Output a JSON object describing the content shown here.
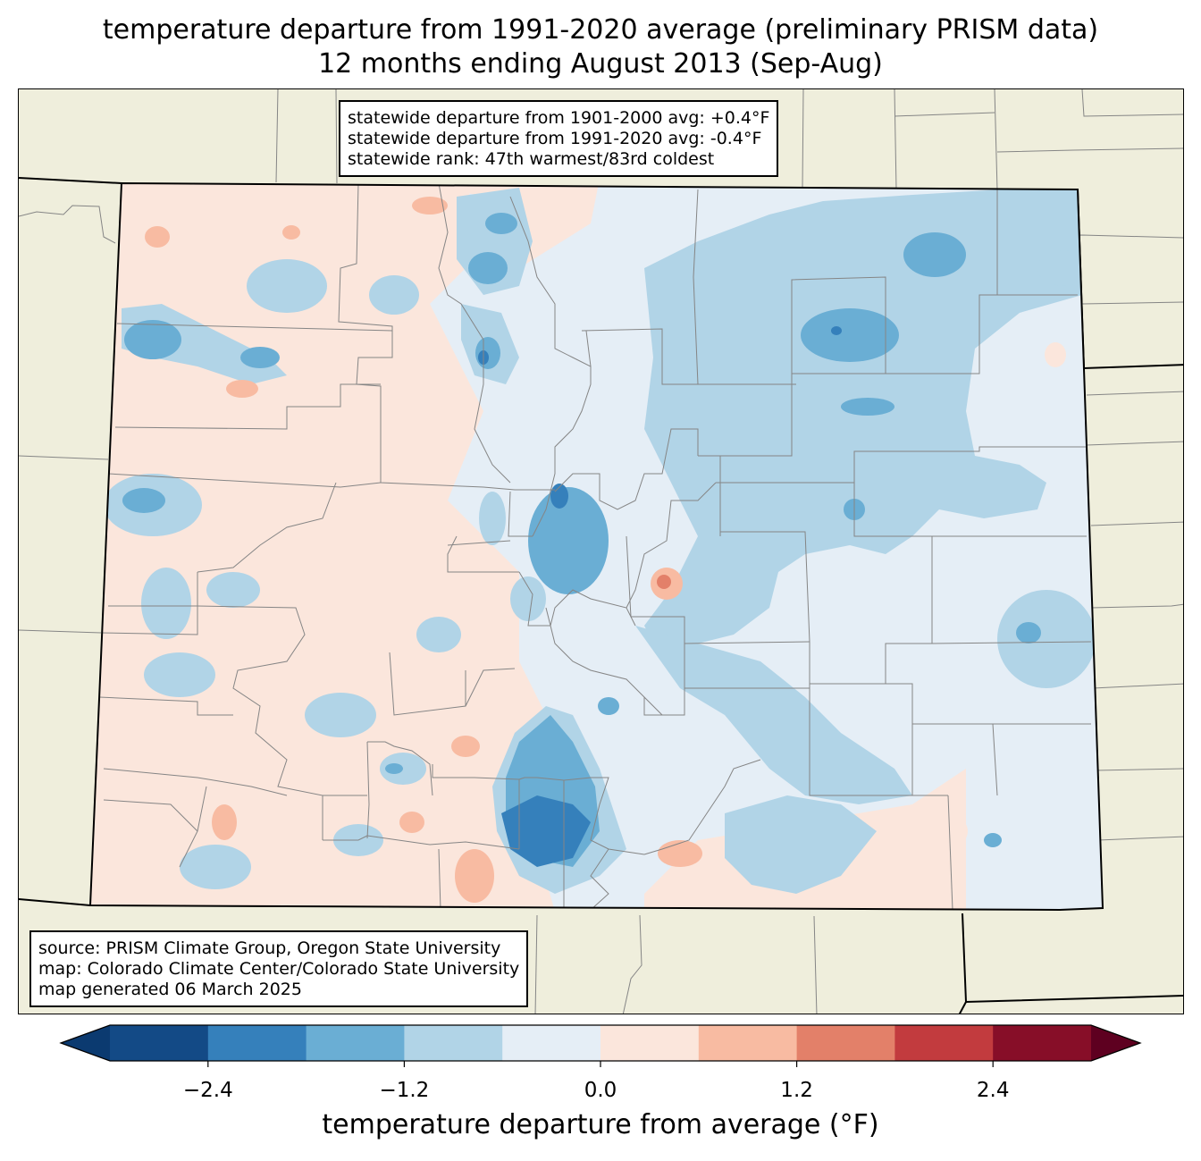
{
  "title": {
    "line1": "temperature departure from 1991-2020 average (preliminary PRISM data)",
    "line2": "12 months ending August 2013 (Sep-Aug)"
  },
  "stats": {
    "line1": "statewide departure from 1901-2000 avg: +0.4°F",
    "line2": "statewide departure from 1991-2020 avg: -0.4°F",
    "line3": "statewide rank: 47th warmest/83rd coldest"
  },
  "credits": {
    "line1": "source: PRISM Climate Group, Oregon State University",
    "line2": "map: Colorado Climate Center/Colorado State University",
    "line3": "map generated 06 March 2025"
  },
  "colorbar": {
    "label": "temperature departure from average (°F)",
    "min": -3.0,
    "max": 3.0,
    "step": 0.6,
    "ticks": [
      {
        "value": -2.4,
        "text": "−2.4"
      },
      {
        "value": -1.2,
        "text": "−1.2"
      },
      {
        "value": 0.0,
        "text": "0.0"
      },
      {
        "value": 1.2,
        "text": "1.2"
      },
      {
        "value": 2.4,
        "text": "2.4"
      }
    ],
    "under_color": "#0b3a70",
    "over_color": "#5e0020",
    "colors": [
      "#134a86",
      "#3580bb",
      "#6aaed4",
      "#b1d4e7",
      "#e5eef6",
      "#fbe6dc",
      "#f8bba2",
      "#e38069",
      "#c23b3e",
      "#870e28"
    ]
  },
  "colors": {
    "background_land": "#efeedc",
    "county_lines": "#858585",
    "state_lines": "#000000"
  }
}
